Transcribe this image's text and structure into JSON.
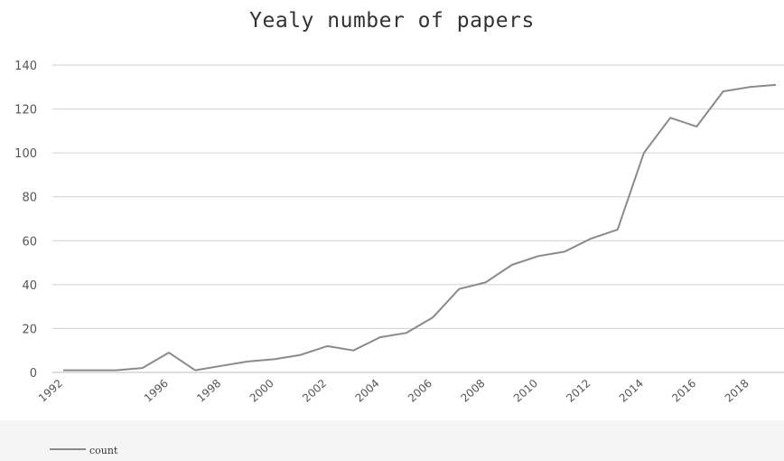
{
  "chart_data": {
    "type": "line",
    "title": "Yealy number of papers",
    "xlabel": "",
    "ylabel": "",
    "ylim": [
      0,
      140
    ],
    "y_ticks": [
      0,
      20,
      40,
      60,
      80,
      100,
      120,
      140
    ],
    "x_tick_labels": [
      "1992",
      "1996",
      "1998",
      "2000",
      "2002",
      "2004",
      "2006",
      "2008",
      "2010",
      "2012",
      "2014",
      "2016",
      "2018"
    ],
    "x": [
      1992,
      1993,
      1994,
      1995,
      1996,
      1997,
      1998,
      1999,
      2000,
      2001,
      2002,
      2003,
      2004,
      2005,
      2006,
      2007,
      2008,
      2009,
      2010,
      2011,
      2012,
      2013,
      2014,
      2015,
      2016,
      2017,
      2018,
      2019
    ],
    "series": [
      {
        "name": "count",
        "values": [
          1,
          1,
          1,
          2,
          9,
          1,
          3,
          5,
          6,
          8,
          12,
          10,
          16,
          18,
          25,
          38,
          41,
          49,
          53,
          55,
          61,
          65,
          100,
          116,
          112,
          128,
          130,
          131
        ]
      }
    ],
    "grid": true,
    "legend_position": "bottom-left",
    "line_color": "#8a8a8a",
    "grid_color": "#d0d0d0"
  }
}
